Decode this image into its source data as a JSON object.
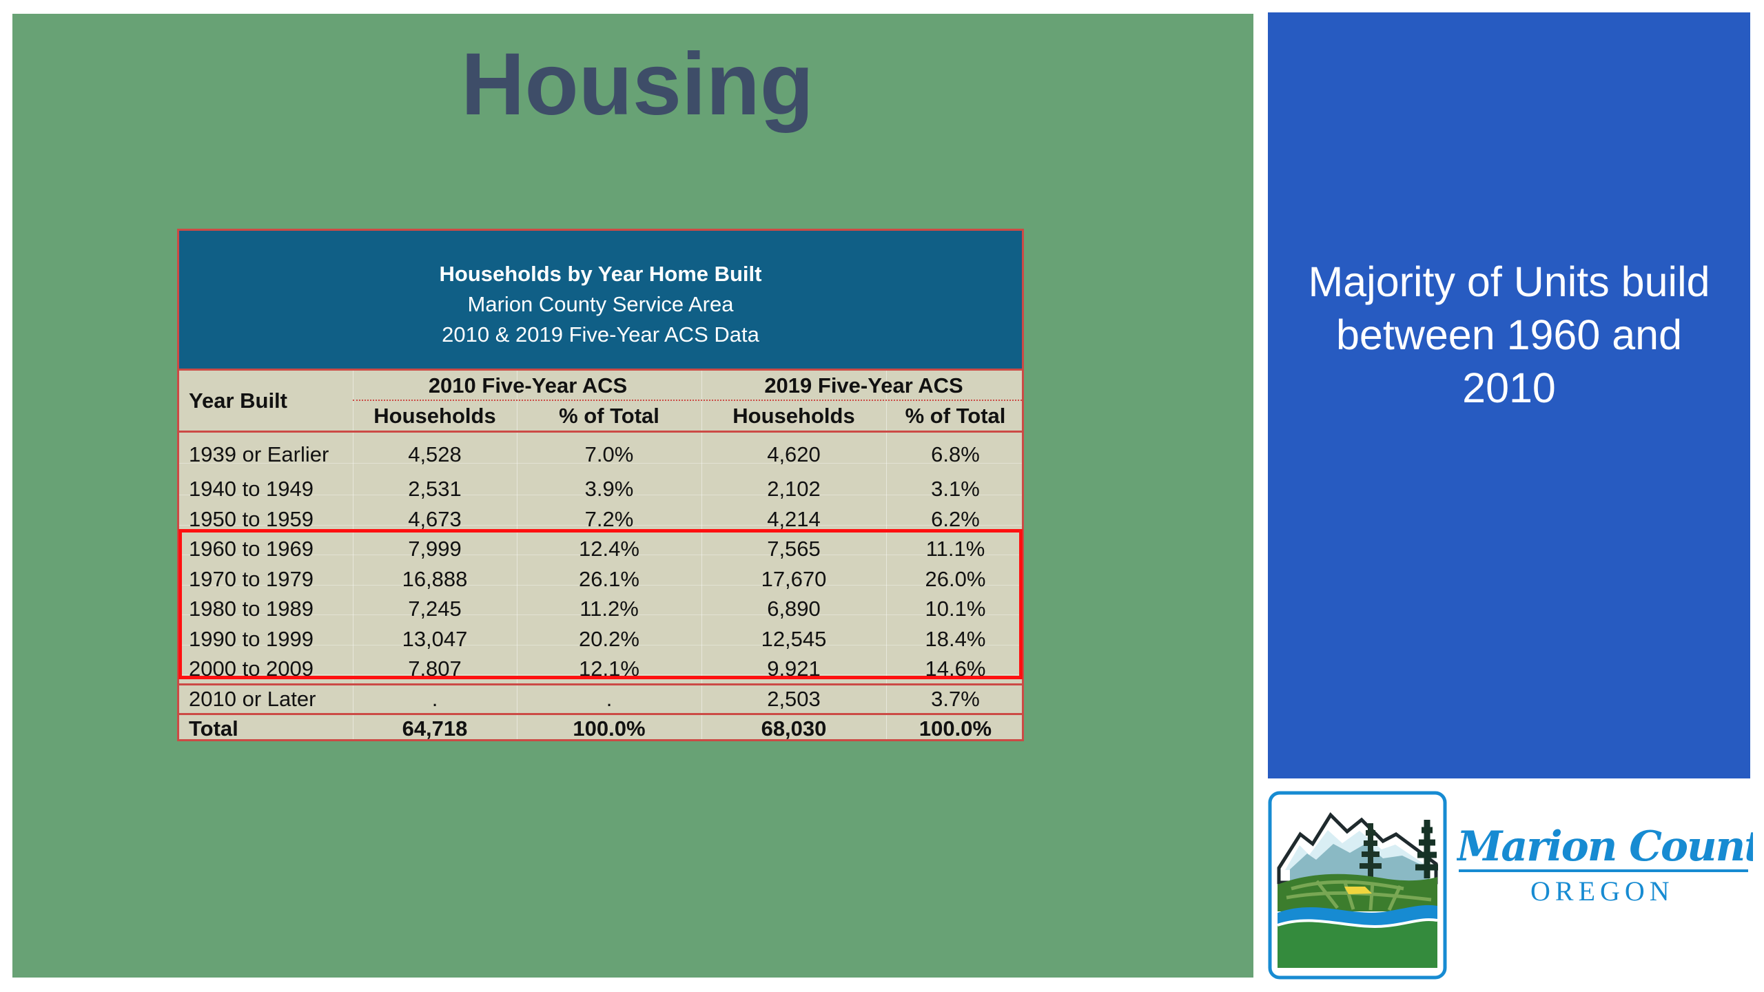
{
  "slide": {
    "title": "Housing",
    "callout": "Majority of Units build between 1960 and 2010",
    "colors": {
      "green_panel": "#68a275",
      "blue_panel": "#275bc1",
      "table_header": "#105f86",
      "table_body": "#d4d3bd",
      "highlight": "#ff1010",
      "logo": "#178bd2"
    }
  },
  "table": {
    "title": "Households by Year Home Built",
    "subtitle": "Marion County Service Area",
    "source": "2010 & 2019 Five-Year ACS Data",
    "headers": {
      "year_built": "Year Built",
      "acs_2010": "2010 Five-Year ACS",
      "acs_2019": "2019 Five-Year ACS",
      "households": "Households",
      "pct_total": "% of Total"
    },
    "rows": [
      {
        "year": "1939 or Earlier",
        "households_2010": "4,528",
        "pct_2010": "7.0%",
        "households_2019": "4,620",
        "pct_2019": "6.8%"
      },
      {
        "year": "1940 to 1949",
        "households_2010": "2,531",
        "pct_2010": "3.9%",
        "households_2019": "2,102",
        "pct_2019": "3.1%"
      },
      {
        "year": "1950 to 1959",
        "households_2010": "4,673",
        "pct_2010": "7.2%",
        "households_2019": "4,214",
        "pct_2019": "6.2%"
      },
      {
        "year": "1960 to 1969",
        "households_2010": "7,999",
        "pct_2010": "12.4%",
        "households_2019": "7,565",
        "pct_2019": "11.1%"
      },
      {
        "year": "1970 to 1979",
        "households_2010": "16,888",
        "pct_2010": "26.1%",
        "households_2019": "17,670",
        "pct_2019": "26.0%"
      },
      {
        "year": "1980 to 1989",
        "households_2010": "7,245",
        "pct_2010": "11.2%",
        "households_2019": "6,890",
        "pct_2019": "10.1%"
      },
      {
        "year": "1990 to 1999",
        "households_2010": "13,047",
        "pct_2010": "20.2%",
        "households_2019": "12,545",
        "pct_2019": "18.4%"
      },
      {
        "year": "2000 to 2009",
        "households_2010": "7,807",
        "pct_2010": "12.1%",
        "households_2019": "9,921",
        "pct_2019": "14.6%"
      },
      {
        "year": "2010 or Later",
        "households_2010": ".",
        "pct_2010": ".",
        "households_2019": "2,503",
        "pct_2019": "3.7%"
      },
      {
        "year": "Total",
        "households_2010": "64,718",
        "pct_2010": "100.0%",
        "households_2019": "68,030",
        "pct_2019": "100.0%"
      }
    ]
  },
  "logo": {
    "name": "Marion County",
    "state": "OREGON"
  }
}
